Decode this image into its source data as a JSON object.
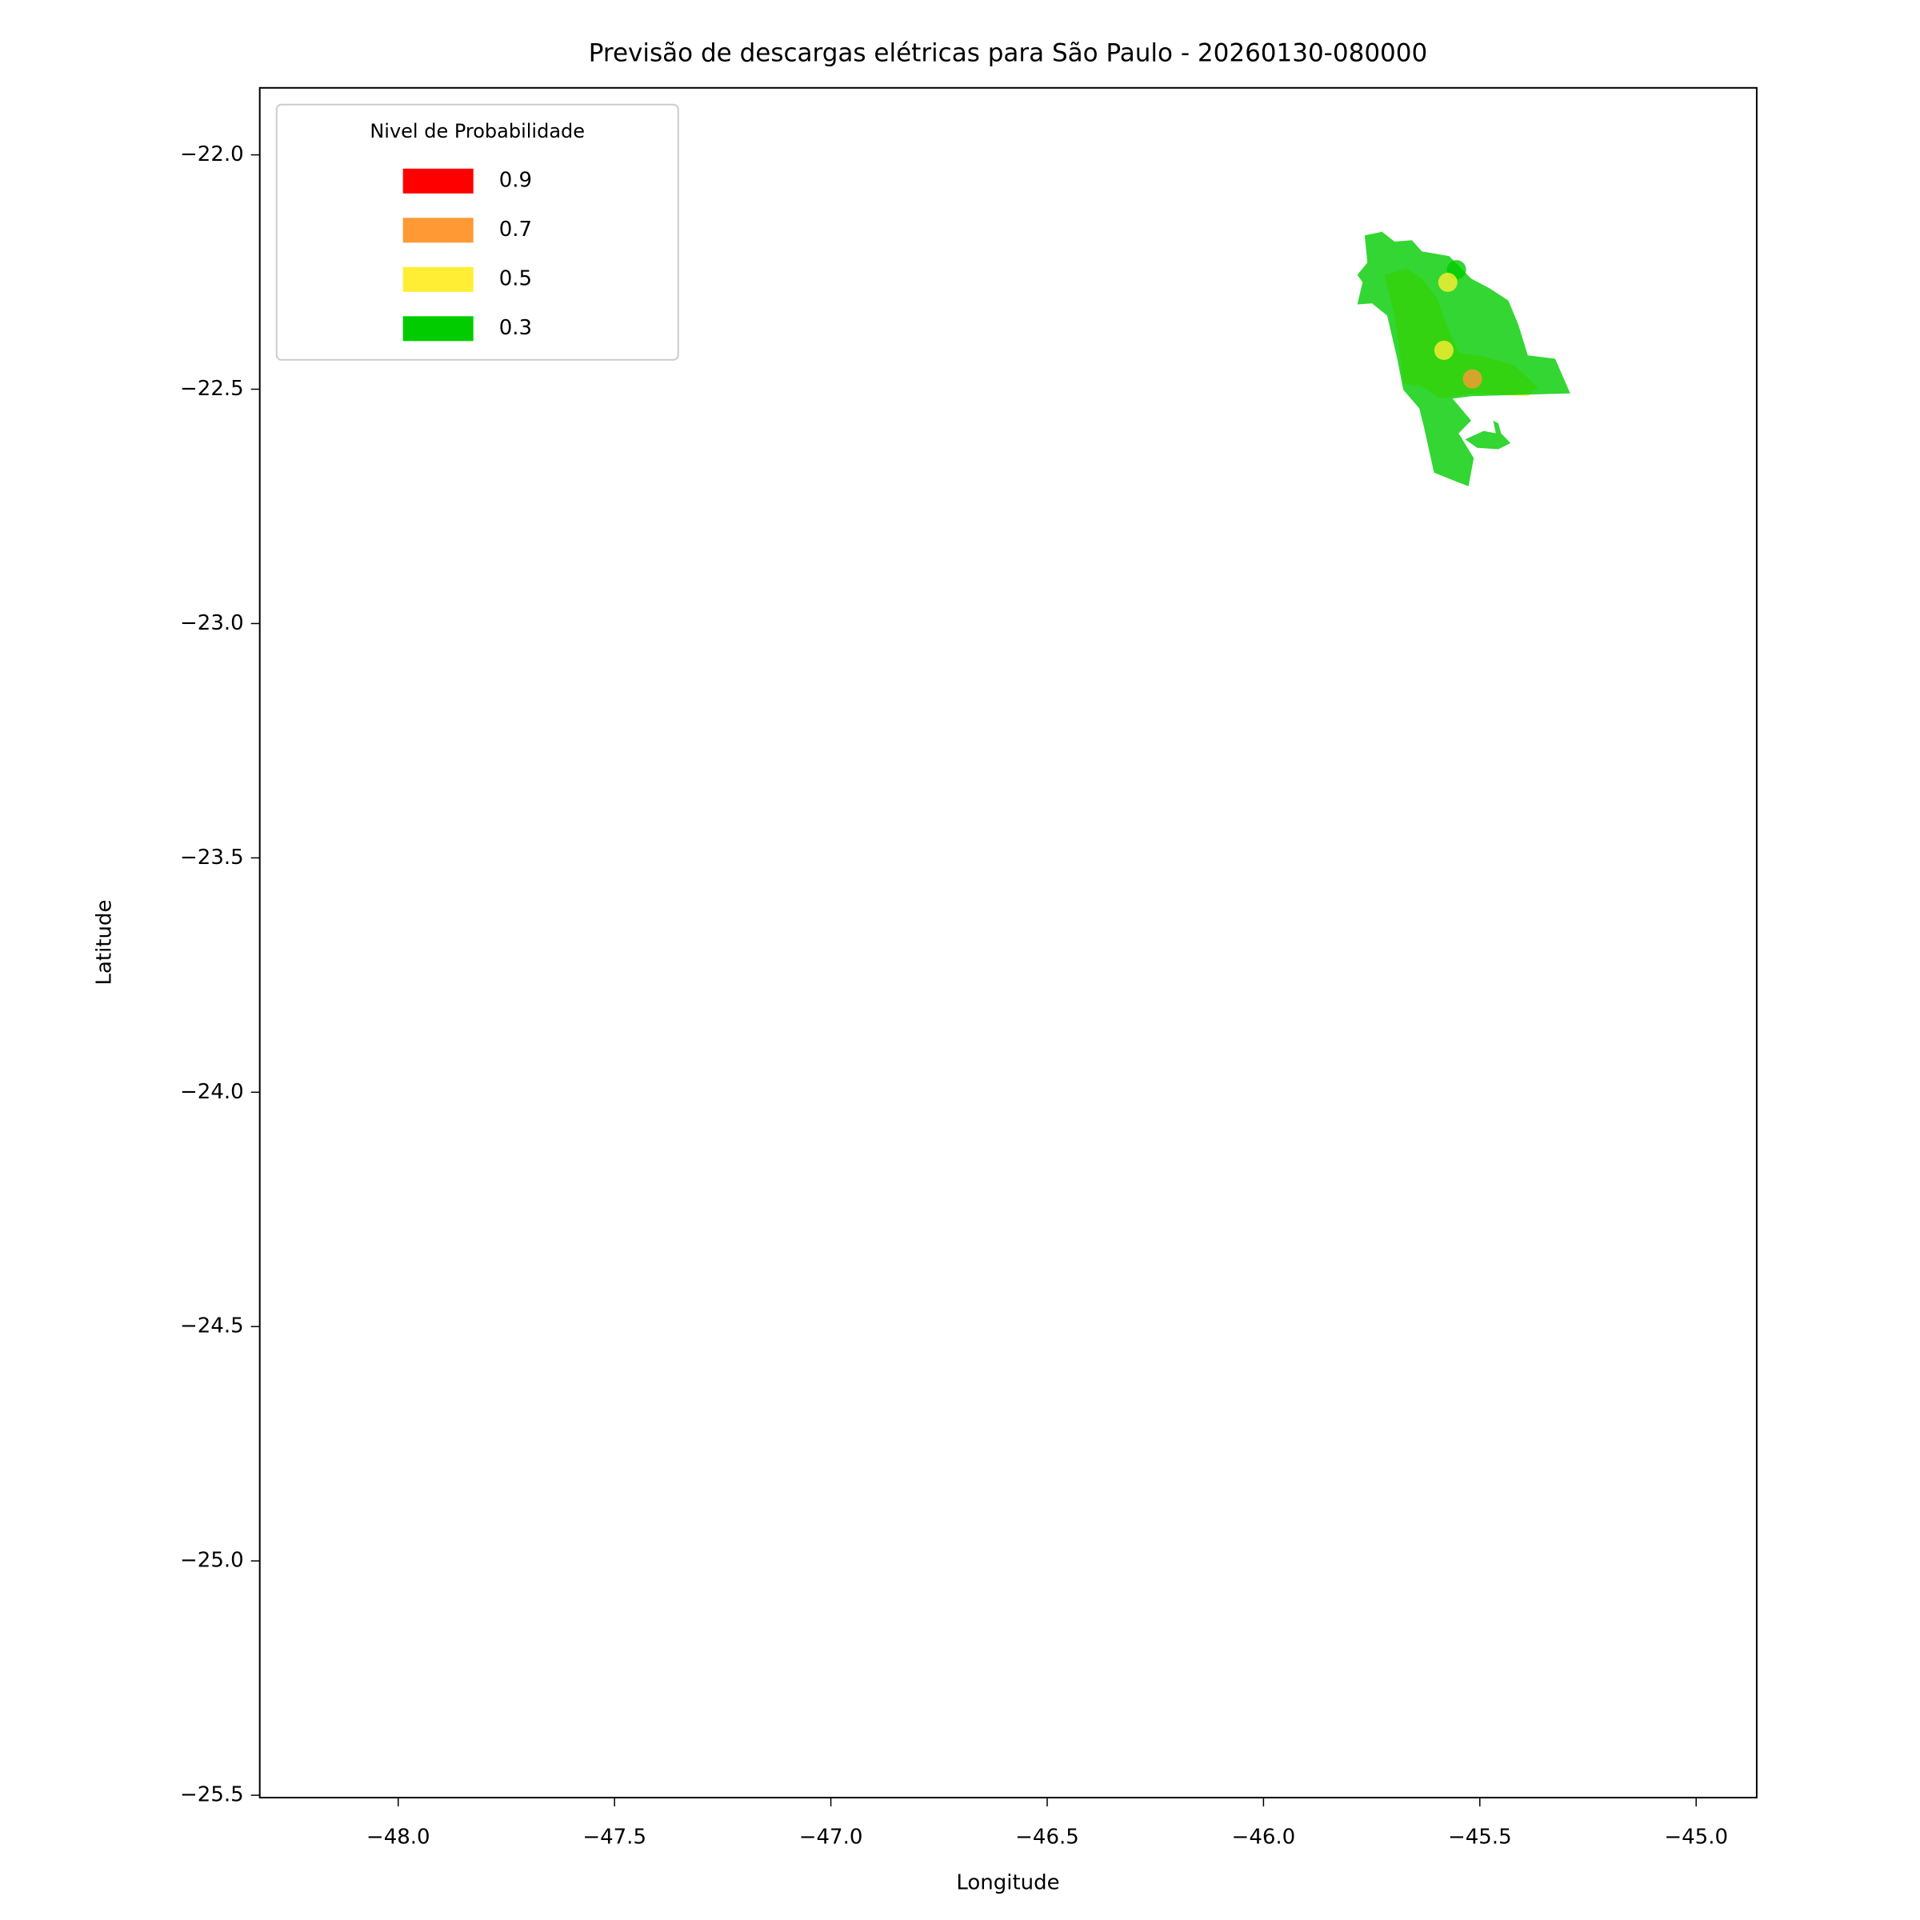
{
  "chart_data": {
    "type": "contour",
    "title": "Previsão de descargas elétricas para São Paulo - 20260130-080000",
    "xlabel": "Longitude",
    "ylabel": "Latitude",
    "xlim": [
      -48.32,
      -44.86
    ],
    "ylim": [
      -25.505,
      -21.857
    ],
    "xticks": [
      {
        "value": -48.0,
        "label": "−48.0"
      },
      {
        "value": -47.5,
        "label": "−47.5"
      },
      {
        "value": -47.0,
        "label": "−47.0"
      },
      {
        "value": -46.5,
        "label": "−46.5"
      },
      {
        "value": -46.0,
        "label": "−46.0"
      },
      {
        "value": -45.5,
        "label": "−45.5"
      },
      {
        "value": -45.0,
        "label": "−45.0"
      }
    ],
    "yticks": [
      {
        "value": -22.0,
        "label": "−22.0"
      },
      {
        "value": -22.5,
        "label": "−22.5"
      },
      {
        "value": -23.0,
        "label": "−23.0"
      },
      {
        "value": -23.5,
        "label": "−23.5"
      },
      {
        "value": -24.0,
        "label": "−24.0"
      },
      {
        "value": -24.5,
        "label": "−24.5"
      },
      {
        "value": -25.0,
        "label": "−25.0"
      },
      {
        "value": -25.5,
        "label": "−25.5"
      }
    ],
    "alpha": 0.8,
    "legend": {
      "title": "Nivel de Probabilidade",
      "position": "upper left"
    },
    "series": [
      {
        "name": "0.9",
        "color": "#ff0000"
      },
      {
        "name": "0.7",
        "color": "#ff9933",
        "points": {
          "x": [
            -45.517
          ],
          "y": [
            -22.478
          ]
        }
      },
      {
        "name": "0.5",
        "color": "#ffee33",
        "regions": [
          {
            "x": [
              -45.72,
              -45.669,
              -45.634,
              -45.6,
              -45.577,
              -45.549,
              -45.491,
              -45.42,
              -45.366,
              -45.389,
              -45.52,
              -45.591,
              -45.634,
              -45.677,
              -45.686,
              -45.697
            ],
            "y": [
              -22.256,
              -22.243,
              -22.264,
              -22.304,
              -22.362,
              -22.422,
              -22.43,
              -22.449,
              -22.496,
              -22.515,
              -22.509,
              -22.52,
              -22.494,
              -22.488,
              -22.414,
              -22.343
            ]
          }
        ],
        "points": {
          "x": [
            -45.574,
            -45.583
          ],
          "y": [
            -22.272,
            -22.417
          ]
        }
      },
      {
        "name": "0.3",
        "color": "#00cc00",
        "regions": [
          {
            "x": [
              -45.766,
              -45.726,
              -45.697,
              -45.657,
              -45.634,
              -45.571,
              -45.52,
              -45.477,
              -45.434,
              -45.411,
              -45.389,
              -45.326,
              -45.291,
              -45.52,
              -45.563,
              -45.52,
              -45.549,
              -45.514,
              -45.526,
              -45.549,
              -45.606,
              -45.629,
              -45.64,
              -45.677,
              -45.691,
              -45.714,
              -45.749,
              -45.783,
              -45.771,
              -45.783,
              -45.76
            ],
            "y": [
              -22.172,
              -22.164,
              -22.185,
              -22.182,
              -22.206,
              -22.216,
              -22.264,
              -22.285,
              -22.311,
              -22.362,
              -22.428,
              -22.435,
              -22.509,
              -22.515,
              -22.52,
              -22.567,
              -22.594,
              -22.647,
              -22.707,
              -22.699,
              -22.678,
              -22.581,
              -22.541,
              -22.501,
              -22.435,
              -22.343,
              -22.317,
              -22.319,
              -22.272,
              -22.256,
              -22.23
            ]
          },
          {
            "x": [
              -45.534,
              -45.491,
              -45.463,
              -45.469,
              -45.457,
              -45.451,
              -45.429,
              -45.457,
              -45.506
            ],
            "y": [
              -22.607,
              -22.589,
              -22.594,
              -22.567,
              -22.573,
              -22.594,
              -22.615,
              -22.628,
              -22.625
            ]
          }
        ],
        "points": {
          "x": [
            -45.554
          ],
          "y": [
            -22.245
          ]
        }
      }
    ]
  }
}
